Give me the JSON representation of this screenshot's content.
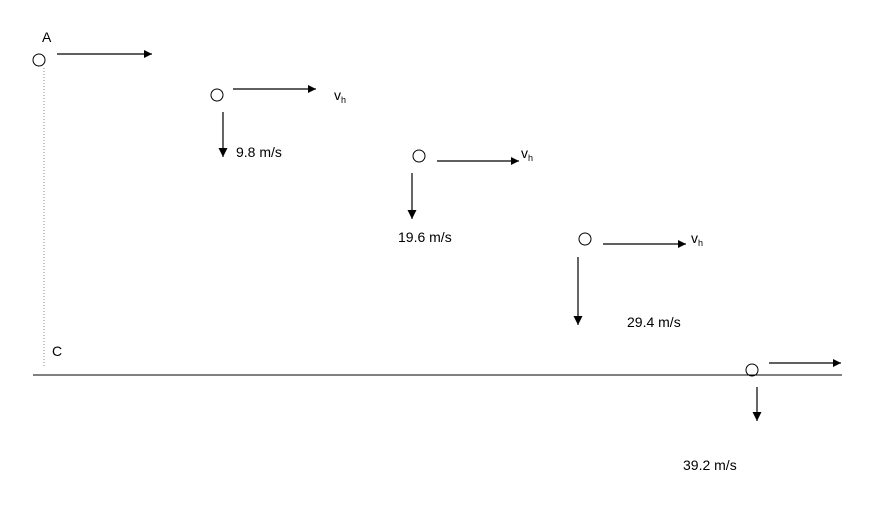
{
  "labels": {
    "start_point": "A",
    "ground_point": "C",
    "horizontal_velocity_symbol": "v",
    "horizontal_velocity_subscript": "h"
  },
  "vertical_velocities": [
    {
      "step": 1,
      "label": "9.8 m/s"
    },
    {
      "step": 2,
      "label": "19.6 m/s"
    },
    {
      "step": 3,
      "label": "29.4 m/s"
    },
    {
      "step": 4,
      "label": "39.2 m/s"
    }
  ],
  "colors": {
    "ink": "#000000",
    "dotted_line": "#888888",
    "background": "#ffffff"
  }
}
